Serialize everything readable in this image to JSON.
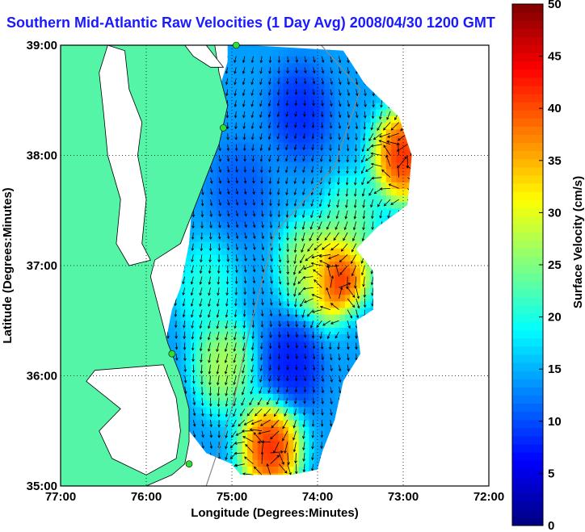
{
  "chart_data": {
    "type": "heatmap",
    "title": "Southern Mid-Atlantic Raw Velocities (1 Day Avg) 2008/04/30 1200 GMT",
    "xlabel": "Longitude (Degrees:Minutes)",
    "ylabel": "Latitude (Degrees:Minutes)",
    "colorbar_label": "Surface Velocity (cm/s)",
    "x_ticks": [
      {
        "value": -77,
        "label": "77:00"
      },
      {
        "value": -76,
        "label": "76:00"
      },
      {
        "value": -75,
        "label": "75:00"
      },
      {
        "value": -74,
        "label": "74:00"
      },
      {
        "value": -73,
        "label": "73:00"
      },
      {
        "value": -72,
        "label": "72:00"
      }
    ],
    "y_ticks": [
      {
        "value": 35,
        "label": "35:00"
      },
      {
        "value": 36,
        "label": "36:00"
      },
      {
        "value": 37,
        "label": "37:00"
      },
      {
        "value": 38,
        "label": "38:00"
      },
      {
        "value": 39,
        "label": "39:00"
      }
    ],
    "xlim": [
      -77,
      -72
    ],
    "ylim": [
      35,
      39
    ],
    "colorbar_ticks": [
      0,
      5,
      10,
      15,
      20,
      25,
      30,
      35,
      40,
      45,
      50
    ],
    "colorbar_range": [
      0,
      50
    ],
    "grid": true,
    "colors": {
      "land": "#55f5a8",
      "coast_line": "#000000",
      "title": "#1a1aff",
      "station": "#33dd33"
    },
    "velocity_features": [
      {
        "lon": -73.0,
        "lat": 38.0,
        "speed": 48
      },
      {
        "lon": -73.75,
        "lat": 36.9,
        "speed": 49
      },
      {
        "lon": -74.55,
        "lat": 35.35,
        "speed": 48
      },
      {
        "lon": -74.2,
        "lat": 38.4,
        "speed": 7
      },
      {
        "lon": -74.1,
        "lat": 37.0,
        "speed": 30
      },
      {
        "lon": -74.3,
        "lat": 36.1,
        "speed": 6
      },
      {
        "lon": -75.1,
        "lat": 36.1,
        "speed": 30
      },
      {
        "lon": -74.9,
        "lat": 37.7,
        "speed": 10
      },
      {
        "lon": -75.3,
        "lat": 36.8,
        "speed": 22
      },
      {
        "lon": -73.5,
        "lat": 36.3,
        "speed": 14
      },
      {
        "lon": -73.6,
        "lat": 37.4,
        "speed": 25
      }
    ],
    "stations": [
      {
        "lon": -74.95,
        "lat": 39.0
      },
      {
        "lon": -75.1,
        "lat": 38.25
      },
      {
        "lon": -75.7,
        "lat": 36.2
      },
      {
        "lon": -75.5,
        "lat": 35.2
      }
    ]
  }
}
